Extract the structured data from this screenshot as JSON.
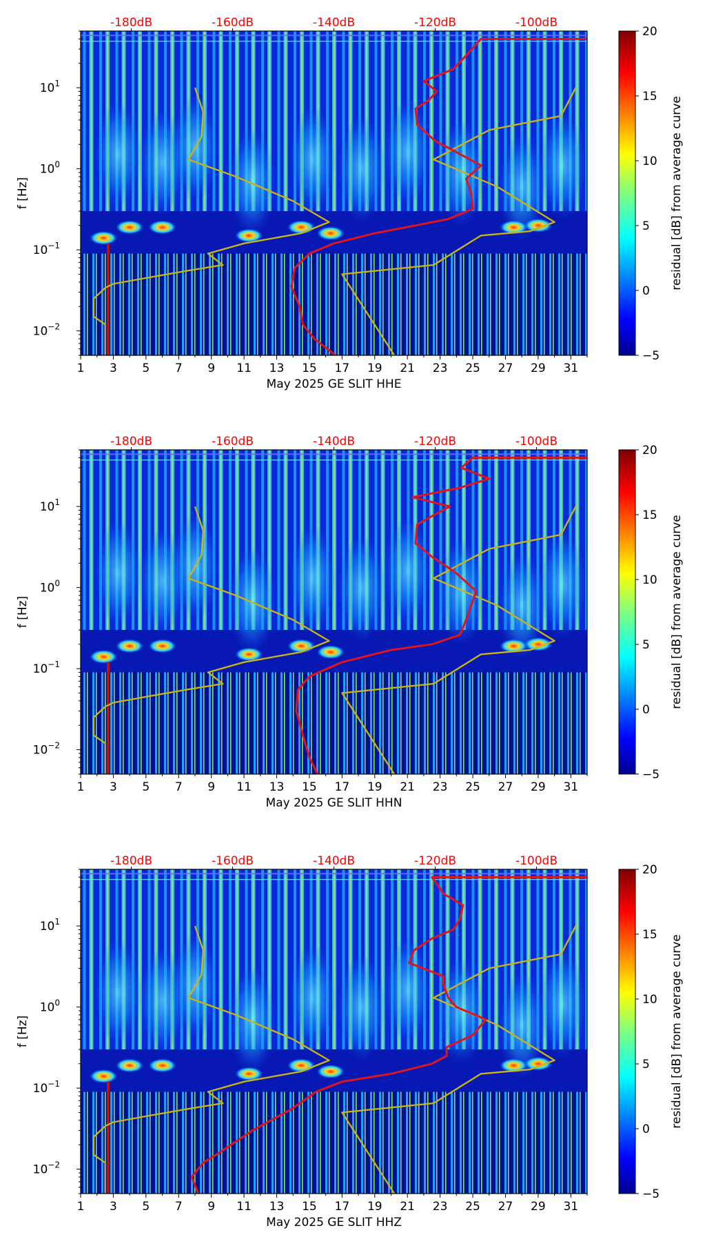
{
  "figure": {
    "panels": [
      {
        "channel": "HHE",
        "xlabel": "May 2025 GE SLIT  HHE"
      },
      {
        "channel": "HHN",
        "xlabel": "May 2025 GE SLIT  HHN"
      },
      {
        "channel": "HHZ",
        "xlabel": "May 2025 GE SLIT  HHZ"
      }
    ],
    "colors": {
      "background": "#00008f",
      "spectrogram_low": "#0000aa",
      "spectrogram_high": "#00ffff",
      "reference_curve": "#c8b21c",
      "psd_curve": "#e0141c",
      "db_labels": "#ff0000"
    }
  },
  "chart_data": [
    {
      "type": "heatmap",
      "title": "",
      "xlabel": "May 2025 GE SLIT  HHE",
      "ylabel": "f [Hz]",
      "y_scale": "log",
      "xlim": [
        1,
        32
      ],
      "ylim": [
        0.005,
        50
      ],
      "x_ticks": [
        "1",
        "3",
        "5",
        "7",
        "9",
        "11",
        "13",
        "15",
        "17",
        "19",
        "21",
        "23",
        "25",
        "27",
        "29",
        "31"
      ],
      "y_ticks": [
        {
          "value": 0.01,
          "base": "10",
          "exp": "−2"
        },
        {
          "value": 0.1,
          "base": "10",
          "exp": "−1"
        },
        {
          "value": 1,
          "base": "10",
          "exp": "0"
        },
        {
          "value": 10,
          "base": "10",
          "exp": "1"
        }
      ],
      "top_axis_labels": [
        "-180dB",
        "-160dB",
        "-140dB",
        "-120dB",
        "-100dB"
      ],
      "top_axis_positions": [
        4.1,
        10.3,
        16.5,
        22.7,
        28.9
      ],
      "colorbar": {
        "label": "residual [dB] from average curve",
        "min": -5,
        "max": 20,
        "ticks": [
          "20",
          "15",
          "10",
          "5",
          "0",
          "−5"
        ],
        "colormap": "jet"
      },
      "series": [
        {
          "color": "#c8b21c",
          "points": [
            [
              8.0,
              10
            ],
            [
              8.5,
              5
            ],
            [
              8.4,
              2.5
            ],
            [
              7.6,
              1.3
            ],
            [
              10.5,
              0.8
            ],
            [
              14,
              0.4
            ],
            [
              16.2,
              0.22
            ],
            [
              14.5,
              0.16
            ],
            [
              11,
              0.12
            ],
            [
              8.8,
              0.09
            ],
            [
              9.3,
              0.075
            ],
            [
              9.7,
              0.065
            ],
            [
              7.5,
              0.055
            ],
            [
              5,
              0.045
            ],
            [
              3,
              0.038
            ],
            [
              2.5,
              0.034
            ],
            [
              1.8,
              0.025
            ],
            [
              1.8,
              0.015
            ],
            [
              2.5,
              0.012
            ],
            [
              2.5,
              0.005
            ]
          ]
        },
        {
          "color": "#c8b21c",
          "points": [
            [
              31.3,
              10
            ],
            [
              30.4,
              4.5
            ],
            [
              26,
              3
            ],
            [
              22.6,
              1.3
            ],
            [
              26.5,
              0.6
            ],
            [
              30,
              0.22
            ],
            [
              28.5,
              0.17
            ],
            [
              25.5,
              0.15
            ],
            [
              22.6,
              0.065
            ],
            [
              17,
              0.05
            ],
            [
              20.2,
              0.005
            ]
          ]
        },
        {
          "color": "#e0141c",
          "points": [
            [
              16.6,
              0.005
            ],
            [
              15.3,
              0.008
            ],
            [
              14.6,
              0.012
            ],
            [
              14.4,
              0.02
            ],
            [
              13.9,
              0.035
            ],
            [
              14.1,
              0.06
            ],
            [
              15,
              0.09
            ],
            [
              16.5,
              0.12
            ],
            [
              19,
              0.16
            ],
            [
              21.5,
              0.2
            ],
            [
              23.5,
              0.24
            ],
            [
              25,
              0.32
            ],
            [
              24.9,
              0.5
            ],
            [
              24.6,
              0.75
            ],
            [
              25.5,
              1.1
            ],
            [
              24,
              1.6
            ],
            [
              22.7,
              2.2
            ],
            [
              21.6,
              3.5
            ],
            [
              21.5,
              5.5
            ],
            [
              22.3,
              7
            ],
            [
              22.8,
              9
            ],
            [
              22,
              12
            ],
            [
              23.8,
              17
            ],
            [
              24.6,
              25
            ],
            [
              25.5,
              40
            ],
            [
              32,
              40
            ]
          ]
        }
      ]
    },
    {
      "type": "heatmap",
      "title": "",
      "xlabel": "May 2025 GE SLIT  HHN",
      "ylabel": "f [Hz]",
      "y_scale": "log",
      "xlim": [
        1,
        32
      ],
      "ylim": [
        0.005,
        50
      ],
      "x_ticks": [
        "1",
        "3",
        "5",
        "7",
        "9",
        "11",
        "13",
        "15",
        "17",
        "19",
        "21",
        "23",
        "25",
        "27",
        "29",
        "31"
      ],
      "y_ticks": [
        {
          "value": 0.01,
          "base": "10",
          "exp": "−2"
        },
        {
          "value": 0.1,
          "base": "10",
          "exp": "−1"
        },
        {
          "value": 1,
          "base": "10",
          "exp": "0"
        },
        {
          "value": 10,
          "base": "10",
          "exp": "1"
        }
      ],
      "top_axis_labels": [
        "-180dB",
        "-160dB",
        "-140dB",
        "-120dB",
        "-100dB"
      ],
      "top_axis_positions": [
        4.1,
        10.3,
        16.5,
        22.7,
        28.9
      ],
      "colorbar": {
        "label": "residual [dB] from average curve",
        "min": -5,
        "max": 20,
        "ticks": [
          "20",
          "15",
          "10",
          "5",
          "0",
          "−5"
        ],
        "colormap": "jet"
      },
      "series": [
        {
          "color": "#c8b21c",
          "points": [
            [
              8.0,
              10
            ],
            [
              8.5,
              5
            ],
            [
              8.4,
              2.5
            ],
            [
              7.6,
              1.3
            ],
            [
              10.5,
              0.8
            ],
            [
              14,
              0.4
            ],
            [
              16.2,
              0.22
            ],
            [
              14.5,
              0.16
            ],
            [
              11,
              0.12
            ],
            [
              8.8,
              0.09
            ],
            [
              9.3,
              0.075
            ],
            [
              9.7,
              0.065
            ],
            [
              7.5,
              0.055
            ],
            [
              5,
              0.045
            ],
            [
              3,
              0.038
            ],
            [
              2.5,
              0.034
            ],
            [
              1.8,
              0.025
            ],
            [
              1.8,
              0.015
            ],
            [
              2.5,
              0.012
            ],
            [
              2.5,
              0.005
            ]
          ]
        },
        {
          "color": "#c8b21c",
          "points": [
            [
              31.3,
              10
            ],
            [
              30.4,
              4.5
            ],
            [
              26,
              3
            ],
            [
              22.6,
              1.3
            ],
            [
              26.5,
              0.6
            ],
            [
              30,
              0.22
            ],
            [
              28.5,
              0.17
            ],
            [
              25.5,
              0.15
            ],
            [
              22.6,
              0.065
            ],
            [
              17,
              0.05
            ],
            [
              20.2,
              0.005
            ]
          ]
        },
        {
          "color": "#e0141c",
          "points": [
            [
              15.5,
              0.005
            ],
            [
              15,
              0.008
            ],
            [
              14.6,
              0.015
            ],
            [
              14.2,
              0.03
            ],
            [
              14.3,
              0.055
            ],
            [
              15,
              0.08
            ],
            [
              17,
              0.12
            ],
            [
              20,
              0.17
            ],
            [
              22.5,
              0.2
            ],
            [
              24.2,
              0.26
            ],
            [
              24.6,
              0.4
            ],
            [
              24.9,
              0.6
            ],
            [
              25.2,
              0.9
            ],
            [
              24,
              1.5
            ],
            [
              22.5,
              2.4
            ],
            [
              21.5,
              3.5
            ],
            [
              21.6,
              6
            ],
            [
              22.7,
              8
            ],
            [
              23.6,
              10
            ],
            [
              21.3,
              13
            ],
            [
              24.2,
              17
            ],
            [
              26,
              22
            ],
            [
              24.3,
              30
            ],
            [
              25,
              40
            ],
            [
              32,
              40
            ]
          ]
        }
      ]
    },
    {
      "type": "heatmap",
      "title": "",
      "xlabel": "May 2025 GE SLIT  HHZ",
      "ylabel": "f [Hz]",
      "y_scale": "log",
      "xlim": [
        1,
        32
      ],
      "ylim": [
        0.005,
        50
      ],
      "x_ticks": [
        "1",
        "3",
        "5",
        "7",
        "9",
        "11",
        "13",
        "15",
        "17",
        "19",
        "21",
        "23",
        "25",
        "27",
        "29",
        "31"
      ],
      "y_ticks": [
        {
          "value": 0.01,
          "base": "10",
          "exp": "−2"
        },
        {
          "value": 0.1,
          "base": "10",
          "exp": "−1"
        },
        {
          "value": 1,
          "base": "10",
          "exp": "0"
        },
        {
          "value": 10,
          "base": "10",
          "exp": "1"
        }
      ],
      "top_axis_labels": [
        "-180dB",
        "-160dB",
        "-140dB",
        "-120dB",
        "-100dB"
      ],
      "top_axis_positions": [
        4.1,
        10.3,
        16.5,
        22.7,
        28.9
      ],
      "colorbar": {
        "label": "residual [dB] from average curve",
        "min": -5,
        "max": 20,
        "ticks": [
          "20",
          "15",
          "10",
          "5",
          "0",
          "−5"
        ],
        "colormap": "jet"
      },
      "series": [
        {
          "color": "#c8b21c",
          "points": [
            [
              8.0,
              10
            ],
            [
              8.5,
              5
            ],
            [
              8.4,
              2.5
            ],
            [
              7.6,
              1.3
            ],
            [
              10.5,
              0.8
            ],
            [
              14,
              0.4
            ],
            [
              16.2,
              0.22
            ],
            [
              14.5,
              0.16
            ],
            [
              11,
              0.12
            ],
            [
              8.8,
              0.09
            ],
            [
              9.3,
              0.075
            ],
            [
              9.7,
              0.065
            ],
            [
              7.5,
              0.055
            ],
            [
              5,
              0.045
            ],
            [
              3,
              0.038
            ],
            [
              2.5,
              0.034
            ],
            [
              1.8,
              0.025
            ],
            [
              1.8,
              0.015
            ],
            [
              2.5,
              0.012
            ],
            [
              2.5,
              0.005
            ]
          ]
        },
        {
          "color": "#c8b21c",
          "points": [
            [
              31.3,
              10
            ],
            [
              30.4,
              4.5
            ],
            [
              26,
              3
            ],
            [
              22.6,
              1.3
            ],
            [
              26.5,
              0.6
            ],
            [
              30,
              0.22
            ],
            [
              28.5,
              0.17
            ],
            [
              25.5,
              0.15
            ],
            [
              22.6,
              0.065
            ],
            [
              17,
              0.05
            ],
            [
              20.2,
              0.005
            ]
          ]
        },
        {
          "color": "#e0141c",
          "points": [
            [
              8.2,
              0.005
            ],
            [
              7.8,
              0.008
            ],
            [
              8.5,
              0.012
            ],
            [
              9.5,
              0.016
            ],
            [
              11.5,
              0.03
            ],
            [
              13.9,
              0.055
            ],
            [
              15.4,
              0.09
            ],
            [
              17,
              0.12
            ],
            [
              20,
              0.15
            ],
            [
              22.5,
              0.2
            ],
            [
              23.4,
              0.25
            ],
            [
              23.4,
              0.32
            ],
            [
              25,
              0.45
            ],
            [
              25.8,
              0.7
            ],
            [
              24,
              1.0
            ],
            [
              23.5,
              1.3
            ],
            [
              23.2,
              1.9
            ],
            [
              23.2,
              2.4
            ],
            [
              21.1,
              3.5
            ],
            [
              21.4,
              5
            ],
            [
              22.5,
              7
            ],
            [
              23.8,
              9
            ],
            [
              24.2,
              12
            ],
            [
              24.4,
              18
            ],
            [
              23.2,
              25
            ],
            [
              22.5,
              40
            ],
            [
              32,
              40
            ]
          ]
        }
      ]
    }
  ]
}
